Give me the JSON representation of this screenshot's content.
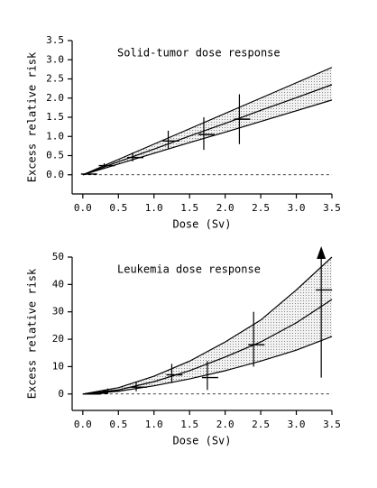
{
  "chart_data": [
    {
      "type": "scatter",
      "title": "Solid-tumor dose response",
      "x_label": "Dose (Sv)",
      "y_label": "Excess relative risk",
      "xlim": [
        -0.15,
        3.5
      ],
      "ylim": [
        -0.5,
        3.5
      ],
      "xticks": [
        {
          "value": 0,
          "label": "0.0"
        },
        {
          "value": 0.5,
          "label": "0.5"
        },
        {
          "value": 1,
          "label": "1.0"
        },
        {
          "value": 1.5,
          "label": "1.5"
        },
        {
          "value": 2,
          "label": "2.0"
        },
        {
          "value": 2.5,
          "label": "2.5"
        },
        {
          "value": 3,
          "label": "3.0"
        },
        {
          "value": 3.5,
          "label": "3.5"
        }
      ],
      "yticks": [
        {
          "value": 0,
          "label": "0.0"
        },
        {
          "value": 0.5,
          "label": "0.5"
        },
        {
          "value": 1,
          "label": "1.0"
        },
        {
          "value": 1.5,
          "label": "1.5"
        },
        {
          "value": 2,
          "label": "2.0"
        },
        {
          "value": 2.5,
          "label": "2.5"
        },
        {
          "value": 3,
          "label": "3.0"
        },
        {
          "value": 3.5,
          "label": "3.5"
        }
      ],
      "x": [
        0.05,
        0.3,
        0.7,
        1.2,
        1.7,
        2.2
      ],
      "values": [
        0.02,
        0.24,
        0.45,
        0.88,
        1.05,
        1.45
      ],
      "y_low": [
        0.0,
        0.19,
        0.35,
        0.68,
        0.65,
        0.8
      ],
      "y_high": [
        0.05,
        0.3,
        0.58,
        1.15,
        1.5,
        2.1
      ],
      "fit_x": [
        0,
        0.5,
        1,
        1.5,
        2,
        2.5,
        3,
        3.5
      ],
      "fit": [
        0,
        0.34,
        0.67,
        1.01,
        1.34,
        1.68,
        2.01,
        2.35
      ],
      "fit_upper": [
        0,
        0.4,
        0.8,
        1.2,
        1.6,
        2.0,
        2.4,
        2.8
      ],
      "fit_lower": [
        0,
        0.28,
        0.56,
        0.84,
        1.11,
        1.39,
        1.67,
        1.95
      ]
    },
    {
      "type": "scatter",
      "title": "Leukemia dose response",
      "x_label": "Dose (Sv)",
      "y_label": "Excess relative risk",
      "xlim": [
        -0.15,
        3.5
      ],
      "ylim": [
        -6,
        50
      ],
      "xticks": [
        {
          "value": 0,
          "label": "0.0"
        },
        {
          "value": 0.5,
          "label": "0.5"
        },
        {
          "value": 1,
          "label": "1.0"
        },
        {
          "value": 1.5,
          "label": "1.5"
        },
        {
          "value": 2,
          "label": "2.0"
        },
        {
          "value": 2.5,
          "label": "2.5"
        },
        {
          "value": 3,
          "label": "3.0"
        },
        {
          "value": 3.5,
          "label": "3.5"
        }
      ],
      "yticks": [
        0,
        10,
        20,
        30,
        40,
        50
      ],
      "x": [
        0.1,
        0.2,
        0.35,
        0.75,
        1.25,
        1.75,
        2.4,
        3.35
      ],
      "values": [
        0,
        0.3,
        1.0,
        2.5,
        7,
        6,
        18,
        38
      ],
      "y_low": [
        0,
        0,
        0,
        1,
        4,
        1.5,
        10,
        6
      ],
      "y_high": [
        0.3,
        0.8,
        2,
        4.5,
        11,
        12,
        30,
        50
      ],
      "fit_x": [
        0,
        0.5,
        1,
        1.5,
        2,
        2.5,
        3,
        3.5
      ],
      "fit": [
        0,
        1.5,
        4.5,
        8.5,
        13.5,
        19,
        26,
        34.5
      ],
      "fit_upper": [
        0,
        2.3,
        6.5,
        12,
        19,
        27,
        38,
        50
      ],
      "fit_lower": [
        0,
        1,
        3,
        5.5,
        8.5,
        12,
        16,
        21
      ]
    }
  ]
}
